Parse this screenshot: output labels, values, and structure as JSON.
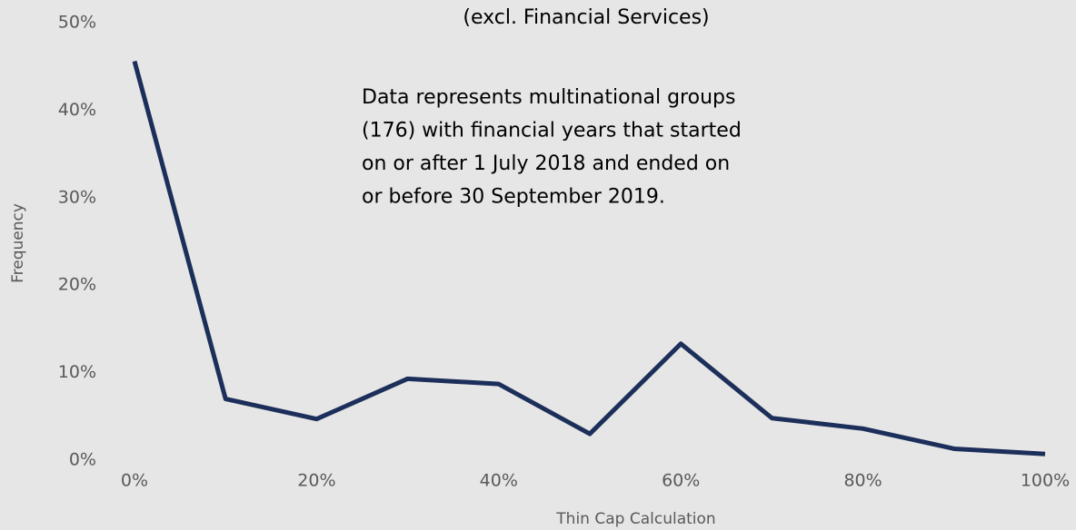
{
  "chart_data": {
    "type": "line",
    "title": "(excl. Financial Services)",
    "annotation": [
      "Data represents multinational groups",
      "(176) with financial years that started",
      "on or after 1 July 2018 and ended on",
      "or before 30 September 2019."
    ],
    "x_label": "Thin Cap Calculation",
    "y_label": "Frequency",
    "x": [
      0,
      10,
      20,
      30,
      40,
      50,
      60,
      70,
      80,
      90,
      100
    ],
    "series": [
      {
        "name": "Frequency",
        "color": "#1c2f5a",
        "values": [
          45.6,
          7.0,
          4.7,
          9.3,
          8.7,
          3.0,
          13.3,
          4.8,
          3.6,
          1.3,
          0.7
        ]
      }
    ],
    "xlim": [
      0,
      100
    ],
    "xticks": [
      {
        "value": 0,
        "label": "0%"
      },
      {
        "value": 20,
        "label": "20%"
      },
      {
        "value": 40,
        "label": "40%"
      },
      {
        "value": 60,
        "label": "60%"
      },
      {
        "value": 80,
        "label": "80%"
      },
      {
        "value": 100,
        "label": "100%"
      }
    ],
    "ylim": [
      0,
      50
    ],
    "yticks": [
      {
        "value": 0,
        "label": "0%"
      },
      {
        "value": 10,
        "label": "10%"
      },
      {
        "value": 20,
        "label": "20%"
      },
      {
        "value": 30,
        "label": "30%"
      },
      {
        "value": 40,
        "label": "40%"
      },
      {
        "value": 50,
        "label": "50%"
      }
    ],
    "grid": false
  }
}
